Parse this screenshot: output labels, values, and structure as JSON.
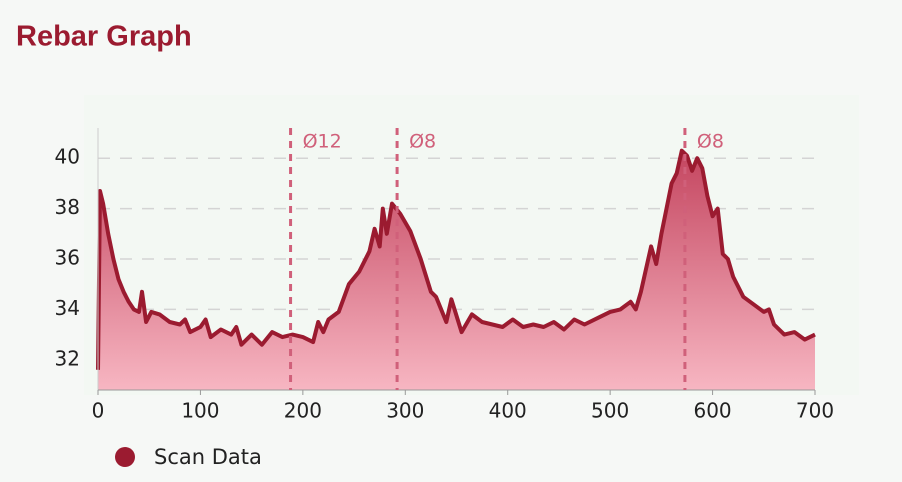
{
  "chart_data": {
    "type": "line",
    "title": "Rebar Graph",
    "x": [
      0,
      2,
      5,
      10,
      15,
      20,
      25,
      30,
      35,
      40,
      43,
      47,
      52,
      60,
      70,
      80,
      85,
      90,
      100,
      105,
      110,
      120,
      130,
      135,
      140,
      150,
      160,
      170,
      180,
      190,
      200,
      210,
      215,
      220,
      225,
      235,
      245,
      255,
      265,
      270,
      275,
      278,
      282,
      287,
      295,
      305,
      315,
      325,
      330,
      340,
      345,
      355,
      365,
      375,
      385,
      395,
      405,
      415,
      425,
      435,
      445,
      455,
      465,
      475,
      490,
      500,
      510,
      520,
      525,
      530,
      535,
      540,
      545,
      550,
      555,
      560,
      565,
      570,
      575,
      580,
      585,
      590,
      595,
      600,
      605,
      610,
      615,
      620,
      630,
      640,
      650,
      655,
      660,
      670,
      680,
      690,
      700
    ],
    "series": [
      {
        "name": "Scan Data",
        "color": "#9b1b30",
        "values": [
          31.6,
          38.7,
          38.2,
          37,
          36,
          35.2,
          34.7,
          34.3,
          34,
          33.9,
          34.7,
          33.5,
          33.9,
          33.8,
          33.5,
          33.4,
          33.6,
          33.1,
          33.3,
          33.6,
          32.9,
          33.2,
          33.0,
          33.3,
          32.6,
          33.0,
          32.6,
          33.1,
          32.9,
          33.0,
          32.9,
          32.7,
          33.5,
          33.1,
          33.6,
          33.9,
          35.0,
          35.5,
          36.3,
          37.2,
          36.5,
          38.0,
          37.0,
          38.2,
          37.8,
          37.1,
          36.0,
          34.7,
          34.5,
          33.5,
          34.4,
          33.1,
          33.8,
          33.5,
          33.4,
          33.3,
          33.6,
          33.3,
          33.4,
          33.3,
          33.5,
          33.2,
          33.6,
          33.4,
          33.7,
          33.9,
          34.0,
          34.3,
          34.0,
          34.7,
          35.6,
          36.5,
          35.8,
          37.0,
          38.0,
          39.0,
          39.4,
          40.3,
          40.1,
          39.5,
          40.0,
          39.6,
          38.5,
          37.7,
          38.0,
          36.2,
          36.0,
          35.3,
          34.5,
          34.2,
          33.9,
          34.0,
          33.4,
          33.0,
          33.1,
          32.8,
          33.0
        ]
      }
    ],
    "xlim": [
      0,
      700
    ],
    "xticks": [
      0,
      100,
      200,
      300,
      400,
      500,
      600,
      700
    ],
    "ylim": [
      30.8,
      41.2
    ],
    "yticks": [
      32,
      34,
      36,
      38,
      40
    ],
    "grid": true,
    "annotations": [
      {
        "x": 188,
        "label": "Ø12"
      },
      {
        "x": 292,
        "label": "Ø8"
      },
      {
        "x": 573,
        "label": "Ø8"
      }
    ]
  }
}
